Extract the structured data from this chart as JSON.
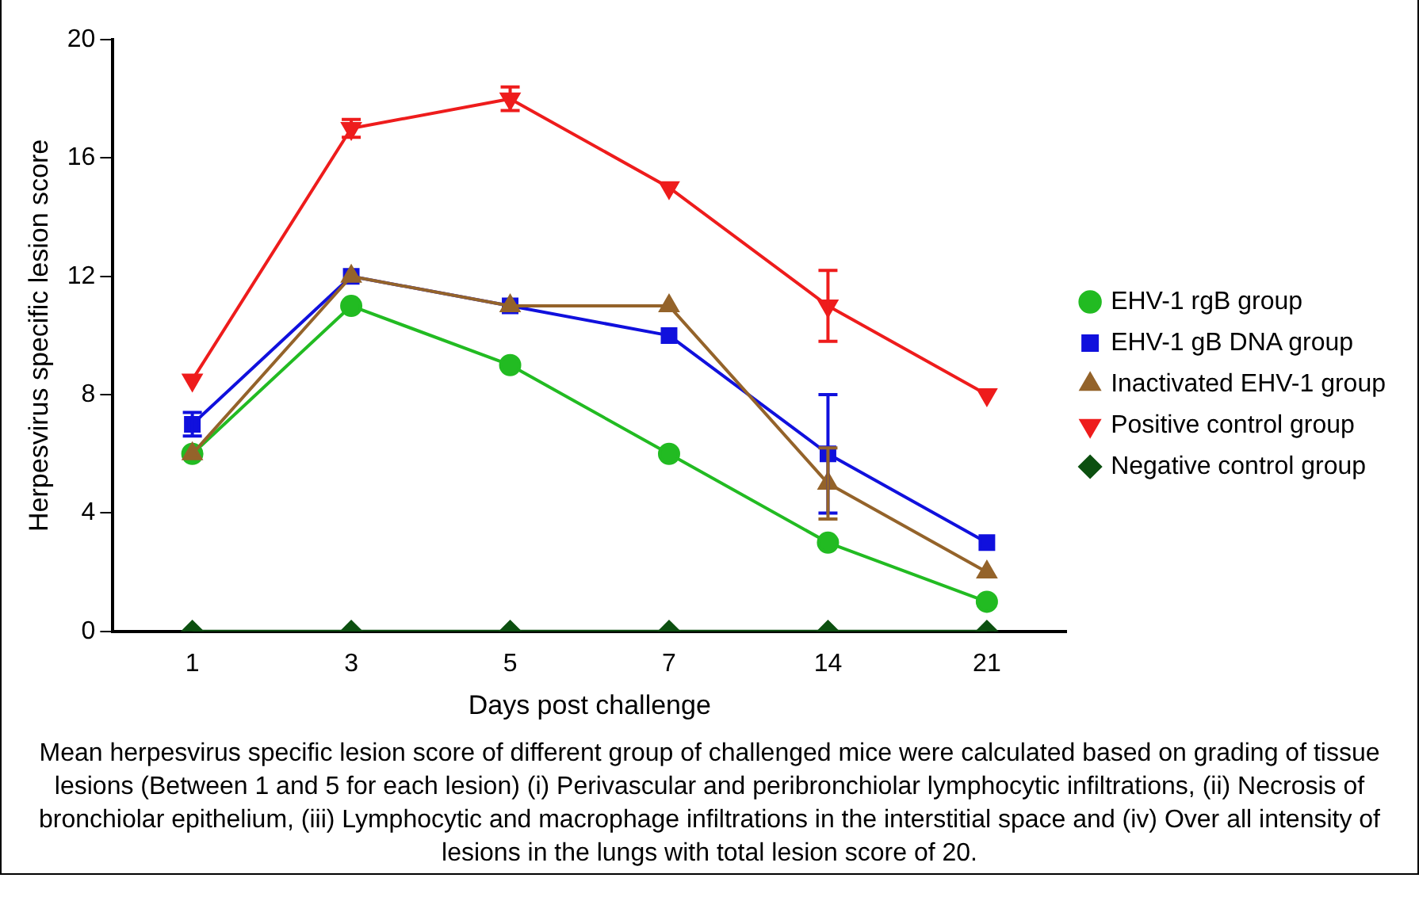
{
  "chart_data": {
    "type": "line",
    "xlabel": "Days post challenge",
    "ylabel": "Herpesvirus specific lesion score",
    "categories": [
      "1",
      "3",
      "5",
      "7",
      "14",
      "21"
    ],
    "series": [
      {
        "name": "EHV-1 rgB group",
        "color": "#22bb22",
        "marker": "circle",
        "values": [
          6,
          11,
          9,
          6,
          3,
          1
        ]
      },
      {
        "name": "EHV-1 gB DNA group",
        "color": "#1010dd",
        "marker": "square",
        "values": [
          7,
          12,
          11,
          10,
          6,
          3
        ],
        "errors": [
          0.4,
          null,
          null,
          null,
          2,
          null
        ]
      },
      {
        "name": "Inactivated EHV-1 group",
        "color": "#94632a",
        "marker": "triangle",
        "values": [
          6,
          12,
          11,
          11,
          5,
          2
        ],
        "errors": [
          null,
          null,
          null,
          null,
          1.2,
          null
        ]
      },
      {
        "name": "Positive control group",
        "color": "#ee1c1c",
        "marker": "triangle-down",
        "values": [
          8.5,
          17,
          18,
          15,
          11,
          8
        ],
        "errors": [
          null,
          0.3,
          0.4,
          null,
          1.2,
          null
        ]
      },
      {
        "name": "Negative control group",
        "color": "#0c5010",
        "marker": "diamond",
        "values": [
          0,
          0,
          0,
          0,
          0,
          0
        ]
      }
    ],
    "ylim": [
      0,
      20
    ],
    "yticks": [
      0,
      4,
      8,
      12,
      16,
      20
    ],
    "grid": false,
    "legend": "right",
    "annotations": [
      "Mean herpesvirus specific lesion score of different group of challenged mice were calculated based on grading of tissue lesions (Between 1 and 5 for each lesion) (i) Perivascular and peribronchiolar lymphocytic infiltrations, (ii) Necrosis of bronchiolar epithelium, (iii) Lymphocytic and macrophage infiltrations in the interstitial space and (iv) Over all intensity of lesions in the lungs with total lesion score of 20."
    ]
  }
}
